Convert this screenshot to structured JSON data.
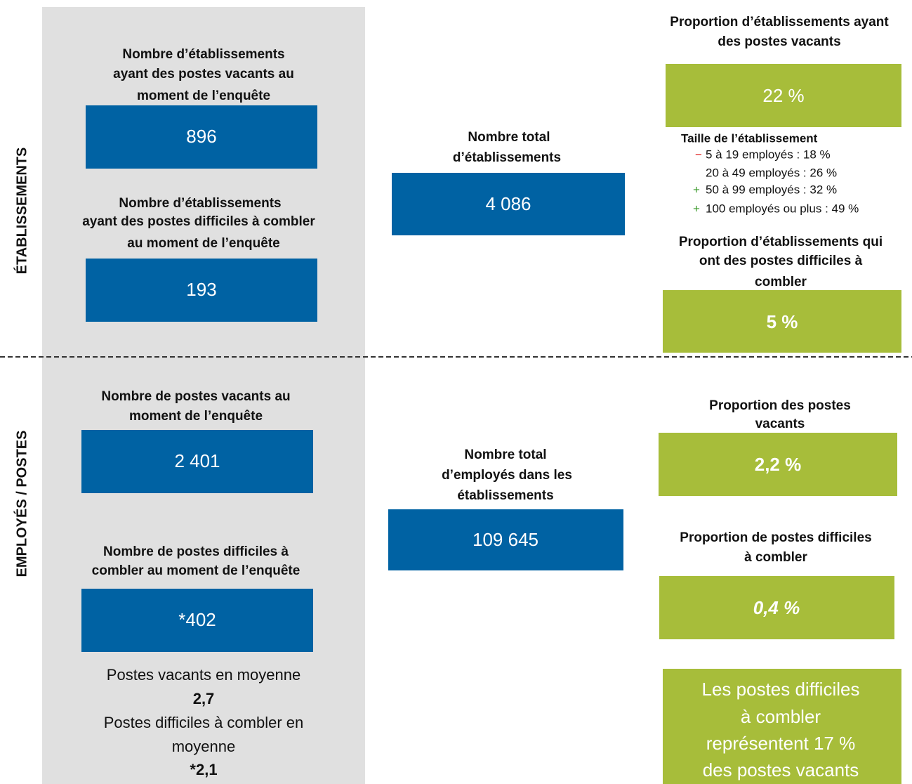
{
  "side_labels": [
    "ÉTABLISSEMENTS",
    "EMPLOYÉS / POSTES"
  ],
  "establishments": {
    "vacant": {
      "title": [
        "Nombre d’établissements",
        "ayant des postes vacants au",
        "moment de l’enquête"
      ],
      "value": "896"
    },
    "hard": {
      "title": [
        "Nombre d’établissements",
        "ayant des postes difficiles à combler",
        "au moment de l’enquête"
      ],
      "value": "193"
    },
    "total": {
      "title": [
        "Nombre total",
        "d’établissements"
      ],
      "value": "4 086"
    },
    "prop_vacant": {
      "title": [
        "Proportion d’établissements ayant",
        "des postes vacants"
      ],
      "value": "22 %"
    },
    "size": {
      "title": "Taille de l’établissement",
      "items": [
        {
          "marker": "−",
          "text": "5 à 19 employés : 18 %"
        },
        {
          "text": "20 à 49 employés : 26 %"
        },
        {
          "marker": "+",
          "text": "50 à 99 employés : 32 %"
        },
        {
          "marker": "+",
          "text": "100 employés ou plus : 49 %"
        }
      ]
    },
    "prop_hard": {
      "title": [
        "Proportion d’établissements qui",
        "ont des postes difficiles à",
        "combler"
      ],
      "value": "5 %"
    }
  },
  "positions": {
    "vacant": {
      "title": [
        "Nombre de postes vacants au",
        "moment de l’enquête"
      ],
      "value": "2 401"
    },
    "hard": {
      "title": [
        "Nombre de postes difficiles à",
        "combler au moment de l’enquête"
      ],
      "value": "*402"
    },
    "averages": [
      "Postes vacants en moyenne",
      "2,7",
      "Postes difficiles à combler en",
      "moyenne",
      "*2,1"
    ],
    "total": {
      "title": [
        "Nombre total",
        "d’employés dans les",
        "établissements"
      ],
      "value": "109 645"
    },
    "prop_vacant": {
      "title": [
        "Proportion des postes",
        "vacants"
      ],
      "value": "2,2 %"
    },
    "prop_hard": {
      "title": [
        "Proportion de postes difficiles",
        "à combler"
      ],
      "value": "0,4 %"
    },
    "note": [
      "Les postes difficiles",
      "à combler",
      "représentent 17 %",
      "des postes vacants"
    ]
  }
}
